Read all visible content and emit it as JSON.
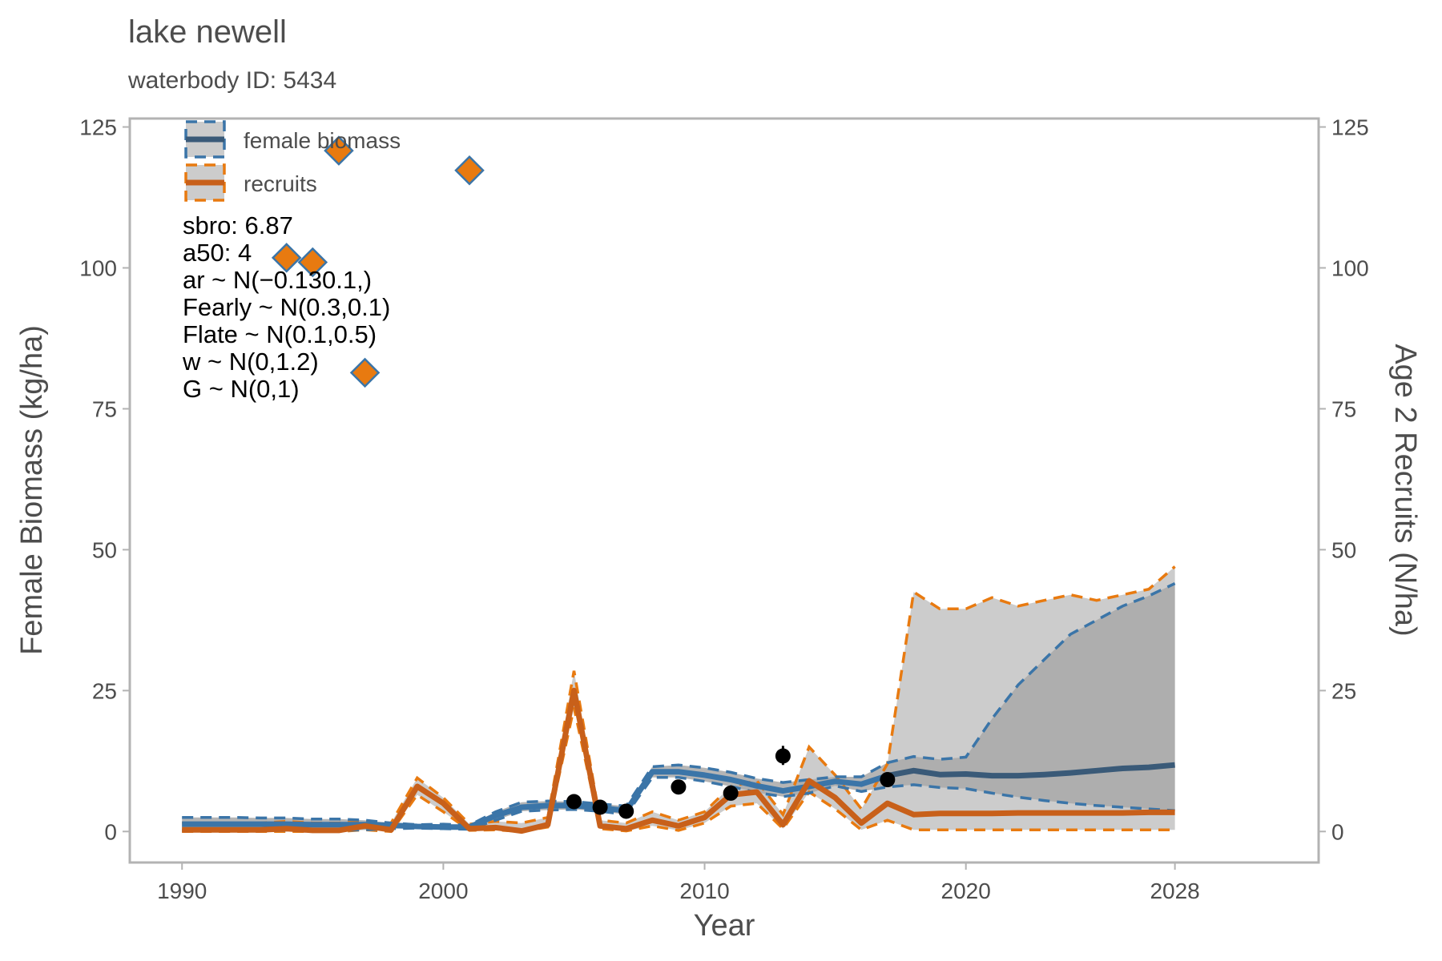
{
  "title": "lake newell",
  "subtitle": "waterbody ID: 5434",
  "chart_data": {
    "type": "line",
    "xlabel": "Year",
    "ylabel_left": "Female Biomass (kg/ha)",
    "ylabel_right": "Age 2 Recruits (N/ha)",
    "xlim": [
      1988,
      2033.5
    ],
    "ylim": [
      -5.5,
      126.5
    ],
    "x_ticks": [
      1990,
      2000,
      2010,
      2020,
      2028
    ],
    "y_ticks": [
      0,
      25,
      50,
      75,
      100,
      125
    ],
    "colors": {
      "biomass": "#3b75a8",
      "biomass_projection": "#3a5a78",
      "recruits": "#e87a10",
      "recruits_line": "#c8601a",
      "band_light": "#cccccc",
      "band_dark": "#a8a8a8",
      "points": "#000000",
      "diamond_fill": "#e87a10",
      "diamond_edge": "#3b75a8"
    },
    "legend": {
      "position": "top-left",
      "entries": [
        "female biomass",
        "recruits"
      ]
    },
    "annotations": [
      "sbro: 6.87",
      "a50: 4",
      "ar ~ N(−0.130.1,)",
      "Fearly ~ N(0.3,0.1)",
      "Flate ~ N(0.1,0.5)",
      "w ~ N(0,1.2)",
      "G ~ N(0,1)"
    ],
    "years": [
      1990,
      1991,
      1992,
      1993,
      1994,
      1995,
      1996,
      1997,
      1998,
      1999,
      2000,
      2001,
      2002,
      2003,
      2004,
      2005,
      2006,
      2007,
      2008,
      2009,
      2010,
      2011,
      2012,
      2013,
      2014,
      2015,
      2016,
      2017,
      2018,
      2019,
      2020,
      2021,
      2022,
      2023,
      2024,
      2025,
      2026,
      2027,
      2028
    ],
    "series": [
      {
        "name": "female biomass",
        "median": [
          1.3,
          1.3,
          1.3,
          1.3,
          1.3,
          1.2,
          1.2,
          1.2,
          1.1,
          0.9,
          0.8,
          0.8,
          2.8,
          4.3,
          4.6,
          4.6,
          4.2,
          3.7,
          10.6,
          10.6,
          10.0,
          9.2,
          8.1,
          7.2,
          8.0,
          8.9,
          8.4,
          9.9,
          10.8,
          10.1,
          10.2,
          9.9,
          9.9,
          10.1,
          10.4,
          10.8,
          11.2,
          11.4,
          11.8
        ],
        "upper": [
          2.5,
          2.5,
          2.5,
          2.4,
          2.4,
          2.2,
          2.2,
          2.0,
          1.5,
          1.2,
          1.3,
          1.1,
          3.5,
          5.2,
          5.4,
          5.3,
          4.9,
          4.5,
          11.5,
          11.8,
          11.3,
          10.5,
          9.4,
          8.7,
          9.2,
          9.7,
          9.7,
          12.2,
          13.3,
          12.8,
          13.2,
          20.0,
          26.0,
          30.5,
          35.0,
          37.5,
          40.0,
          41.8,
          44.0
        ],
        "lower": [
          0.2,
          0.2,
          0.2,
          0.2,
          0.2,
          0.2,
          0.2,
          0.3,
          0.5,
          0.6,
          0.5,
          0.4,
          2.0,
          3.6,
          3.8,
          3.9,
          3.6,
          3.0,
          9.6,
          9.6,
          8.9,
          8.0,
          6.9,
          6.2,
          6.8,
          8.1,
          7.1,
          7.9,
          8.3,
          7.8,
          7.6,
          6.8,
          6.1,
          5.5,
          5.0,
          4.6,
          4.3,
          4.0,
          3.7
        ]
      },
      {
        "name": "recruits",
        "median": [
          0.3,
          0.3,
          0.3,
          0.3,
          0.5,
          0.2,
          0.2,
          1.0,
          0.3,
          8.0,
          5.0,
          0.5,
          0.7,
          0.1,
          1.2,
          25.0,
          1.0,
          0.5,
          2.0,
          1.0,
          2.5,
          6.5,
          7.0,
          1.2,
          9.0,
          6.0,
          1.5,
          5.0,
          3.0,
          3.2,
          3.2,
          3.2,
          3.3,
          3.3,
          3.3,
          3.3,
          3.3,
          3.4,
          3.4
        ],
        "upper": [
          1.5,
          1.5,
          1.5,
          1.5,
          1.8,
          1.5,
          1.5,
          1.8,
          1.5,
          9.5,
          6.0,
          1.3,
          1.8,
          1.5,
          2.5,
          28.5,
          2.0,
          1.5,
          3.5,
          2.0,
          3.5,
          8.0,
          9.0,
          3.0,
          15.0,
          10.0,
          4.0,
          12.0,
          42.5,
          39.5,
          39.5,
          41.5,
          40.0,
          41.0,
          42.0,
          41.0,
          42.0,
          43.0,
          47.0
        ],
        "lower": [
          0.0,
          0.0,
          0.0,
          0.0,
          0.0,
          0.0,
          0.0,
          0.3,
          0.0,
          6.5,
          3.5,
          0.2,
          0.3,
          0.0,
          0.8,
          22.0,
          0.5,
          0.1,
          1.0,
          0.2,
          1.5,
          4.5,
          5.0,
          0.5,
          7.0,
          4.0,
          0.3,
          2.0,
          0.3,
          0.3,
          0.3,
          0.3,
          0.3,
          0.3,
          0.3,
          0.3,
          0.3,
          0.3,
          0.3
        ]
      },
      {
        "name": "observed biomass",
        "points": [
          [
            2005,
            5.3
          ],
          [
            2006,
            4.3
          ],
          [
            2007,
            3.6
          ],
          [
            2009,
            7.9
          ],
          [
            2011,
            6.8
          ],
          [
            2013,
            13.4
          ],
          [
            2017,
            9.2
          ]
        ],
        "error": [
          [
            2013,
            11.8,
            15.2
          ]
        ]
      },
      {
        "name": "observed recruits",
        "points": [
          [
            1994,
            101.8
          ],
          [
            1995,
            101.0
          ],
          [
            1996,
            120.8
          ],
          [
            1997,
            81.4
          ],
          [
            2001,
            117.3
          ]
        ]
      }
    ]
  }
}
